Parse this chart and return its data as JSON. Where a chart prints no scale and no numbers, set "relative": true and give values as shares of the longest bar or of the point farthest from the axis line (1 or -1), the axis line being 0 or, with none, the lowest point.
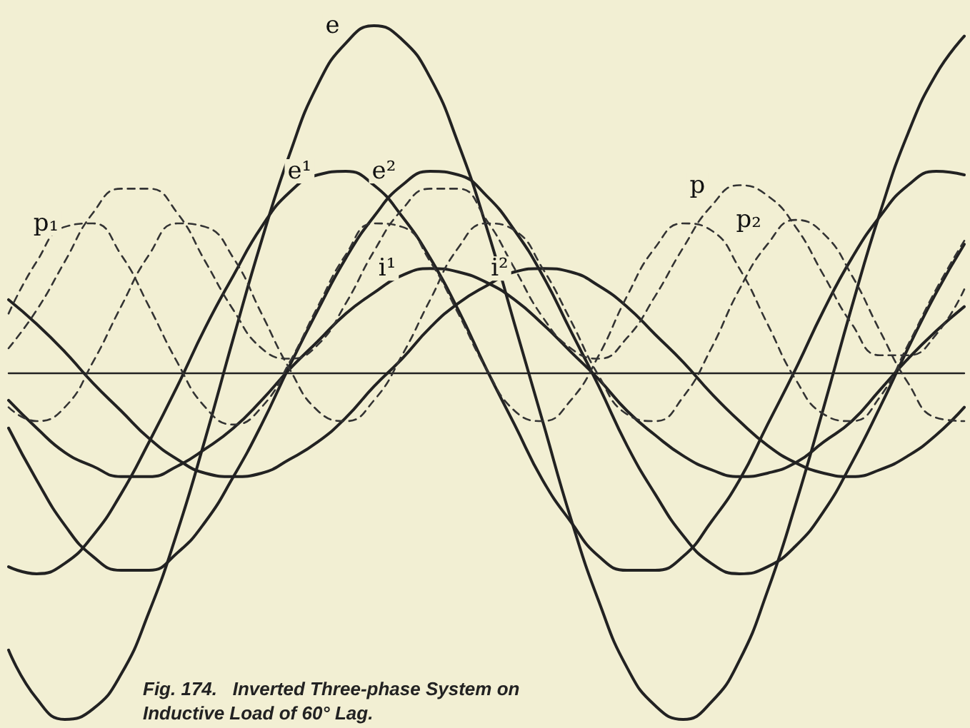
{
  "chart_data": {
    "type": "line",
    "relative": true,
    "title": "Fig. 174.   Inverted Three-phase System on Inductive Load of 60° Lag.",
    "categories": [
      null,
      null,
      null,
      null,
      null,
      null,
      null,
      null,
      null,
      null,
      null,
      null,
      null,
      null,
      null,
      null,
      null,
      null,
      null,
      null,
      null,
      null,
      null,
      null,
      null,
      null,
      null,
      null,
      null,
      null,
      null,
      null,
      null,
      null,
      null
    ],
    "marker": "none",
    "grid": false,
    "legend": false,
    "series": [
      {
        "name": "e",
        "color": "#222222",
        "line_style": "solid",
        "values": [
          -0.8,
          -0.94,
          -1.0,
          -0.97,
          -0.87,
          -0.69,
          -0.46,
          -0.19,
          0.1,
          0.38,
          0.63,
          0.83,
          0.95,
          1.0,
          0.96,
          0.85,
          0.66,
          0.42,
          0.14,
          -0.14,
          -0.42,
          -0.66,
          -0.85,
          -0.96,
          -1.0,
          -0.95,
          -0.83,
          -0.63,
          -0.38,
          -0.1,
          0.19,
          0.46,
          0.69,
          0.86,
          0.97
        ]
      },
      {
        "name": "e¹",
        "color": "#222222",
        "line_style": "solid",
        "values": [
          -0.56,
          -0.58,
          -0.55,
          -0.47,
          -0.35,
          -0.2,
          -0.04,
          0.13,
          0.28,
          0.42,
          0.52,
          0.57,
          0.58,
          0.54,
          0.45,
          0.33,
          0.18,
          0.01,
          -0.15,
          -0.31,
          -0.43,
          -0.53,
          -0.57,
          -0.57,
          -0.53,
          -0.43,
          -0.31,
          -0.15,
          0.01,
          0.18,
          0.33,
          0.45,
          0.54,
          0.58,
          0.57
        ]
      },
      {
        "name": "e²",
        "color": "#222222",
        "line_style": "solid",
        "values": [
          -0.16,
          -0.31,
          -0.44,
          -0.53,
          -0.57,
          -0.57,
          -0.52,
          -0.43,
          -0.3,
          -0.15,
          0.02,
          0.18,
          0.33,
          0.45,
          0.54,
          0.58,
          0.57,
          0.51,
          0.41,
          0.28,
          0.12,
          -0.04,
          -0.21,
          -0.35,
          -0.47,
          -0.55,
          -0.58,
          -0.56,
          -0.5,
          -0.4,
          -0.26,
          -0.1,
          0.07,
          0.23,
          0.37
        ]
      },
      {
        "name": "i¹",
        "color": "#222222",
        "line_style": "solid",
        "values": [
          -0.08,
          -0.16,
          -0.23,
          -0.27,
          -0.3,
          -0.3,
          -0.27,
          -0.22,
          -0.16,
          -0.08,
          0.01,
          0.09,
          0.17,
          0.23,
          0.28,
          0.3,
          0.29,
          0.26,
          0.21,
          0.14,
          0.06,
          -0.02,
          -0.11,
          -0.18,
          -0.24,
          -0.28,
          -0.3,
          -0.29,
          -0.26,
          -0.2,
          -0.14,
          -0.05,
          0.04,
          0.12,
          0.19
        ]
      },
      {
        "name": "i²",
        "color": "#222222",
        "line_style": "solid",
        "values": [
          0.21,
          0.14,
          0.06,
          -0.03,
          -0.11,
          -0.19,
          -0.25,
          -0.29,
          -0.3,
          -0.29,
          -0.25,
          -0.2,
          -0.13,
          -0.04,
          0.04,
          0.13,
          0.2,
          0.25,
          0.29,
          0.3,
          0.29,
          0.25,
          0.19,
          0.11,
          0.03,
          -0.06,
          -0.14,
          -0.21,
          -0.26,
          -0.29,
          -0.3,
          -0.28,
          -0.24,
          -0.18,
          -0.1
        ]
      },
      {
        "name": "p",
        "color": "#333333",
        "line_style": "dashed",
        "values": [
          0.07,
          0.18,
          0.32,
          0.46,
          0.53,
          0.53,
          0.46,
          0.32,
          0.18,
          0.07,
          0.04,
          0.08,
          0.2,
          0.35,
          0.47,
          0.53,
          0.53,
          0.44,
          0.3,
          0.16,
          0.07,
          0.04,
          0.1,
          0.22,
          0.36,
          0.48,
          0.54,
          0.51,
          0.42,
          0.28,
          0.14,
          0.05,
          0.05,
          0.11,
          0.24
        ]
      },
      {
        "name": "p₁",
        "color": "#333333",
        "line_style": "dashed",
        "values": [
          0.17,
          0.32,
          0.42,
          0.43,
          0.34,
          0.19,
          0.03,
          -0.1,
          -0.15,
          -0.1,
          0.03,
          0.19,
          0.34,
          0.43,
          0.42,
          0.32,
          0.17,
          0.01,
          -0.11,
          -0.14,
          -0.08,
          0.05,
          0.22,
          0.36,
          0.43,
          0.41,
          0.3,
          0.14,
          -0.02,
          -0.12,
          -0.14,
          -0.07,
          0.08,
          0.24,
          0.38
        ]
      },
      {
        "name": "p₂",
        "color": "#333333",
        "line_style": "dashed",
        "values": [
          -0.1,
          -0.14,
          -0.1,
          0.03,
          0.19,
          0.34,
          0.43,
          0.42,
          0.33,
          0.17,
          0.01,
          -0.11,
          -0.14,
          -0.08,
          0.05,
          0.21,
          0.36,
          0.43,
          0.41,
          0.3,
          0.15,
          -0.01,
          -0.12,
          -0.14,
          -0.07,
          0.07,
          0.24,
          0.37,
          0.44,
          0.4,
          0.28,
          0.12,
          -0.03,
          -0.13,
          -0.14
        ]
      }
    ]
  }
}
